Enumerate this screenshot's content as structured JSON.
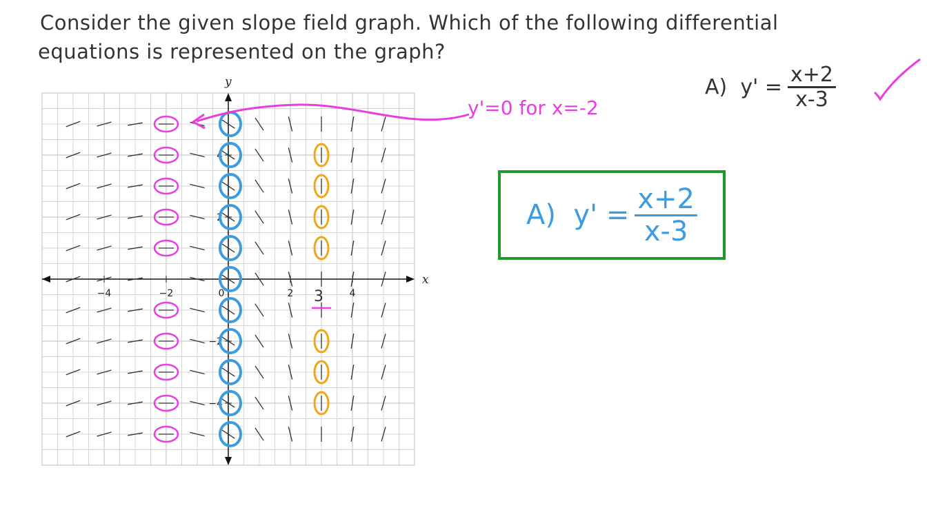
{
  "question": {
    "line1": "Consider the given slope field graph. Which of the following differential",
    "line2": "equations is represented on the graph?"
  },
  "answer_top": {
    "label": "A)",
    "lhs": "y'",
    "eq": "=",
    "numerator": "x+2",
    "denominator": "x-3",
    "check_icon": "checkmark-icon"
  },
  "answer_box": {
    "label": "A)",
    "lhs": "y'",
    "eq": "=",
    "numerator": "x+2",
    "denominator": "x-3"
  },
  "annotation_note": "y'=0 for x=-2",
  "annotation_three": "3",
  "colors": {
    "pink": "#e83de0",
    "blue": "#3d9be0",
    "orange": "#f2a516",
    "green": "#1f9a2a",
    "grid": "#d5d5d5",
    "ink": "#333333"
  },
  "chart_data": {
    "type": "slope-field",
    "equation": "y' = (x+2)/(x-3)",
    "xlabel": "x",
    "ylabel": "y",
    "xlim": [
      -6,
      6
    ],
    "ylim": [
      -6,
      6
    ],
    "grid": true,
    "grid_step": 0.5,
    "x_ticks": [
      -4,
      -2,
      0,
      2,
      4
    ],
    "x_tick_labels": [
      "−4",
      "−2",
      "0",
      "2",
      "4"
    ],
    "y_ticks": [
      4,
      2,
      -2,
      -4
    ],
    "y_tick_labels": [
      "4",
      "2",
      "−2",
      "−4"
    ],
    "field_x": [
      -5,
      -4,
      -3,
      -2,
      -1,
      0,
      1,
      2,
      3,
      4,
      5
    ],
    "field_y": [
      5,
      4,
      3,
      2,
      1,
      0,
      -1,
      -2,
      -3,
      -4,
      -5
    ],
    "circled": {
      "pink_x": -2,
      "pink_y": [
        5,
        4,
        3,
        2,
        1,
        -1,
        -2,
        -3,
        -4,
        -5
      ],
      "blue_x": 0,
      "blue_y": [
        5,
        4,
        3,
        2,
        1,
        0,
        -1,
        -2,
        -3,
        -4,
        -5
      ],
      "orange_x": 3,
      "orange_y": [
        4,
        3,
        2,
        1,
        -2,
        -3,
        -4
      ]
    }
  }
}
